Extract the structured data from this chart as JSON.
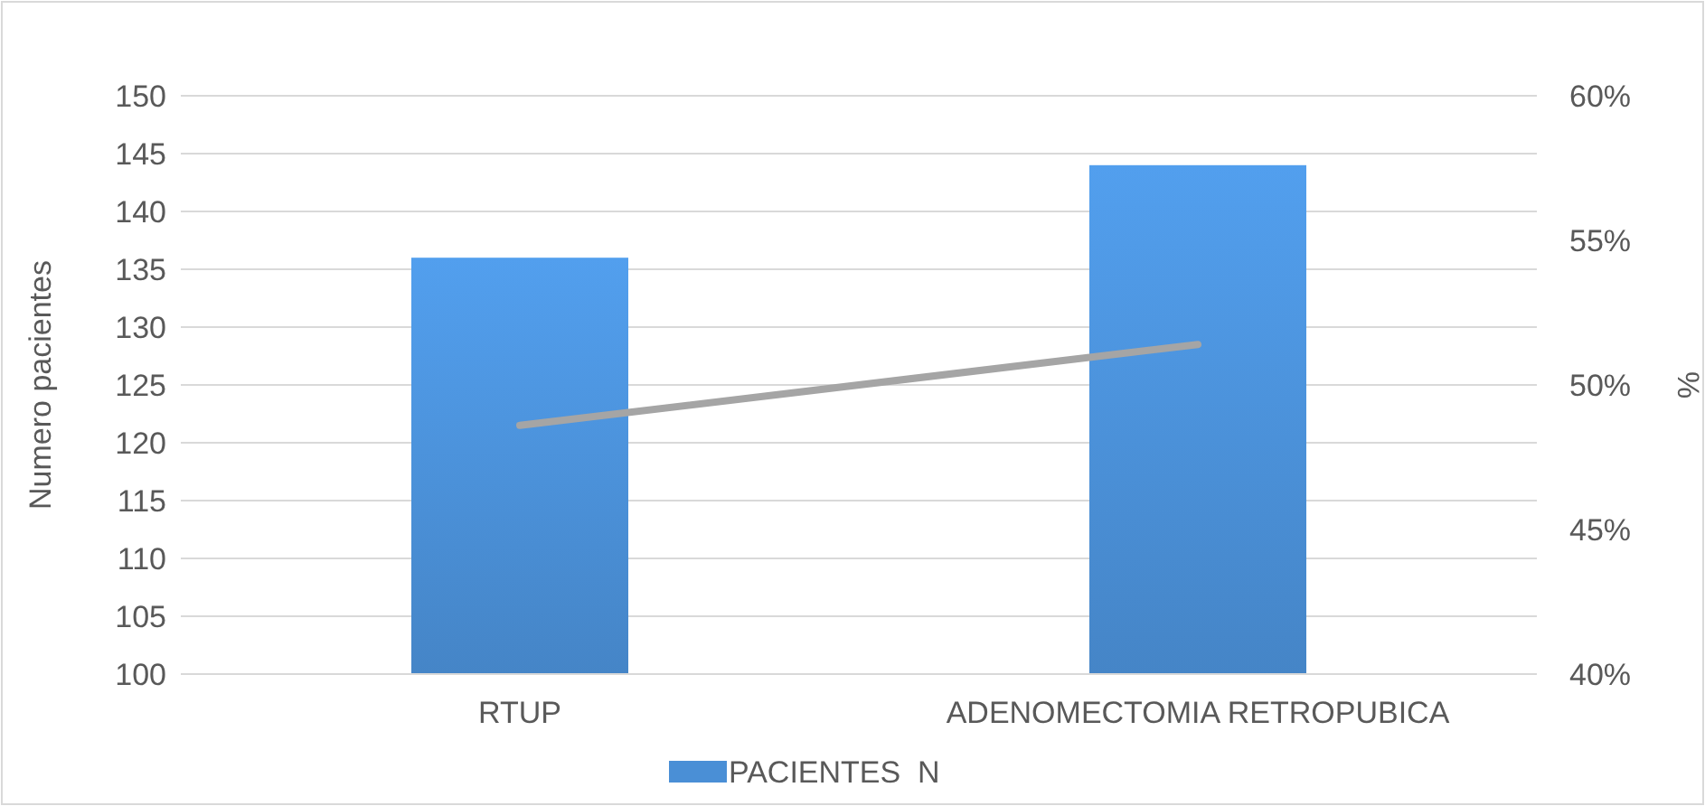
{
  "chart_data": {
    "type": "bar",
    "categories": [
      "RTUP",
      "ADENOMECTOMIA RETROPUBICA"
    ],
    "ylabel": "Numero pacientes",
    "y2label": "%",
    "series": [
      {
        "name": "PACIENTES  N",
        "color": "#4a8fd6",
        "values": [
          136,
          144
        ]
      },
      {
        "type": "line",
        "axis": "y2",
        "color": "#a5a5a5",
        "values": [
          48.6,
          51.4
        ]
      }
    ],
    "ylim": [
      100,
      150
    ],
    "yticks": [
      100,
      105,
      110,
      115,
      120,
      125,
      130,
      135,
      140,
      145,
      150
    ],
    "y2lim": [
      40,
      60
    ],
    "y2ticks": [
      {
        "value": 40,
        "label": "40%"
      },
      {
        "value": 45,
        "label": "45%"
      },
      {
        "value": 50,
        "label": "50%"
      },
      {
        "value": 55,
        "label": "55%"
      },
      {
        "value": 60,
        "label": "60%"
      }
    ],
    "grid": "y",
    "legend": "bottom",
    "marker": "none",
    "line_style": "solid"
  }
}
